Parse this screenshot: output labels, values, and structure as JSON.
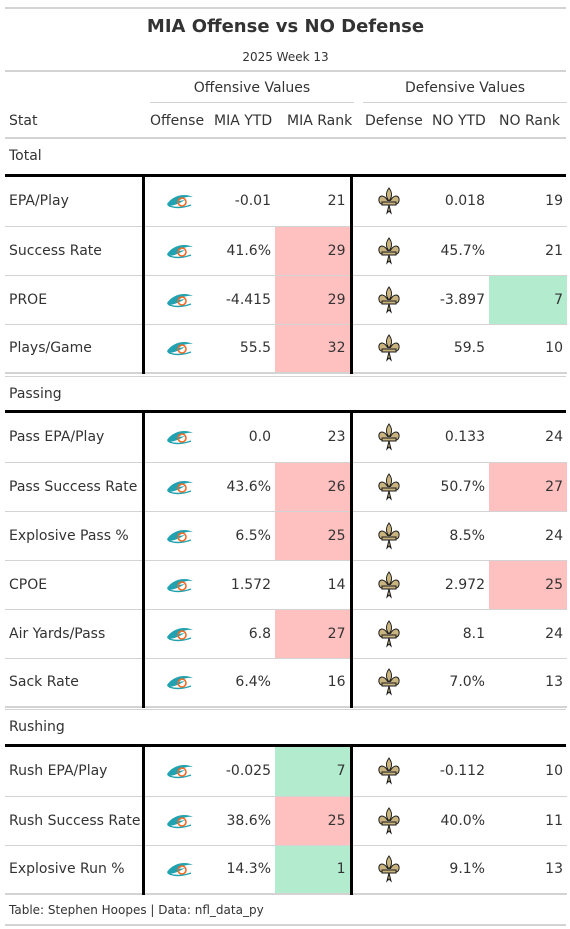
{
  "title": "MIA Offense vs NO Defense",
  "subtitle": "2025 Week 13",
  "spanners": {
    "offense": "Offensive Values",
    "defense": "Defensive Values"
  },
  "columns": [
    "Stat",
    "Offense",
    "MIA YTD",
    "MIA Rank",
    "Defense",
    "NO YTD",
    "NO Rank"
  ],
  "colors": {
    "bad": "#ffc0c0",
    "good": "#b3ebcf",
    "offense_teal": "#22a2b0",
    "offense_orange": "#f26a24",
    "defense_gold": "#c9b37e",
    "defense_black": "#1a1a1a"
  },
  "groups": [
    {
      "label": "Total",
      "rows": [
        {
          "stat": "EPA/Play",
          "mia_ytd": "-0.01",
          "mia_rank": "21",
          "mia_color": "",
          "no_ytd": "0.018",
          "no_rank": "19",
          "no_color": ""
        },
        {
          "stat": "Success Rate",
          "mia_ytd": "41.6%",
          "mia_rank": "29",
          "mia_color": "bad",
          "no_ytd": "45.7%",
          "no_rank": "21",
          "no_color": ""
        },
        {
          "stat": "PROE",
          "mia_ytd": "-4.415",
          "mia_rank": "29",
          "mia_color": "bad",
          "no_ytd": "-3.897",
          "no_rank": "7",
          "no_color": "good"
        },
        {
          "stat": "Plays/Game",
          "mia_ytd": "55.5",
          "mia_rank": "32",
          "mia_color": "bad",
          "no_ytd": "59.5",
          "no_rank": "10",
          "no_color": ""
        }
      ]
    },
    {
      "label": "Passing",
      "rows": [
        {
          "stat": "Pass EPA/Play",
          "mia_ytd": "0.0",
          "mia_rank": "23",
          "mia_color": "",
          "no_ytd": "0.133",
          "no_rank": "24",
          "no_color": ""
        },
        {
          "stat": "Pass Success Rate",
          "mia_ytd": "43.6%",
          "mia_rank": "26",
          "mia_color": "bad",
          "no_ytd": "50.7%",
          "no_rank": "27",
          "no_color": "bad"
        },
        {
          "stat": "Explosive Pass %",
          "mia_ytd": "6.5%",
          "mia_rank": "25",
          "mia_color": "bad",
          "no_ytd": "8.5%",
          "no_rank": "24",
          "no_color": ""
        },
        {
          "stat": "CPOE",
          "mia_ytd": "1.572",
          "mia_rank": "14",
          "mia_color": "",
          "no_ytd": "2.972",
          "no_rank": "25",
          "no_color": "bad"
        },
        {
          "stat": "Air Yards/Pass",
          "mia_ytd": "6.8",
          "mia_rank": "27",
          "mia_color": "bad",
          "no_ytd": "8.1",
          "no_rank": "24",
          "no_color": ""
        },
        {
          "stat": "Sack Rate",
          "mia_ytd": "6.4%",
          "mia_rank": "16",
          "mia_color": "",
          "no_ytd": "7.0%",
          "no_rank": "13",
          "no_color": ""
        }
      ]
    },
    {
      "label": "Rushing",
      "rows": [
        {
          "stat": "Rush EPA/Play",
          "mia_ytd": "-0.025",
          "mia_rank": "7",
          "mia_color": "good",
          "no_ytd": "-0.112",
          "no_rank": "10",
          "no_color": ""
        },
        {
          "stat": "Rush Success Rate",
          "mia_ytd": "38.6%",
          "mia_rank": "25",
          "mia_color": "bad",
          "no_ytd": "40.0%",
          "no_rank": "11",
          "no_color": ""
        },
        {
          "stat": "Explosive Run %",
          "mia_ytd": "14.3%",
          "mia_rank": "1",
          "mia_color": "good",
          "no_ytd": "9.1%",
          "no_rank": "13",
          "no_color": ""
        }
      ]
    }
  ],
  "footer": "Table: Stephen Hoopes | Data: nfl_data_py"
}
